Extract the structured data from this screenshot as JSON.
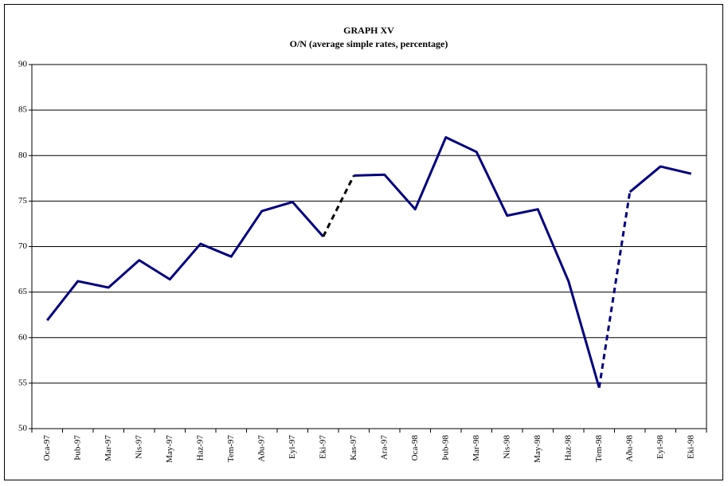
{
  "chart_data": {
    "type": "line",
    "title": "GRAPH XV",
    "subtitle": "O/N (average simple rates, percentage)",
    "categories": [
      "Oca-97",
      "Þub-97",
      "Mar-97",
      "Nis-97",
      "May-97",
      "Haz-97",
      "Tem-97",
      "Aðu-97",
      "Eyl-97",
      "Eki-97",
      "Kas-97",
      "Ara-97",
      "Oca-98",
      "Þub-98",
      "Mar-98",
      "Nis-98",
      "May-98",
      "Haz-98",
      "Tem-98",
      "Aðu-98",
      "Eyl-98",
      "Eki-98"
    ],
    "values": [
      61.9,
      66.2,
      65.5,
      68.5,
      66.4,
      70.3,
      68.9,
      73.9,
      74.9,
      71.1,
      77.8,
      77.9,
      74.1,
      82.0,
      80.4,
      73.4,
      74.1,
      66.2,
      54.5,
      76.0,
      78.8,
      78.0
    ],
    "color": "#000080",
    "dashed_segments": [
      {
        "start": 9,
        "color": "#000000"
      },
      {
        "start": 18,
        "color": "#000080"
      }
    ],
    "ylim": [
      50,
      90
    ],
    "yticks": [
      50,
      55,
      60,
      65,
      70,
      75,
      80,
      85,
      90
    ],
    "grid": true
  }
}
